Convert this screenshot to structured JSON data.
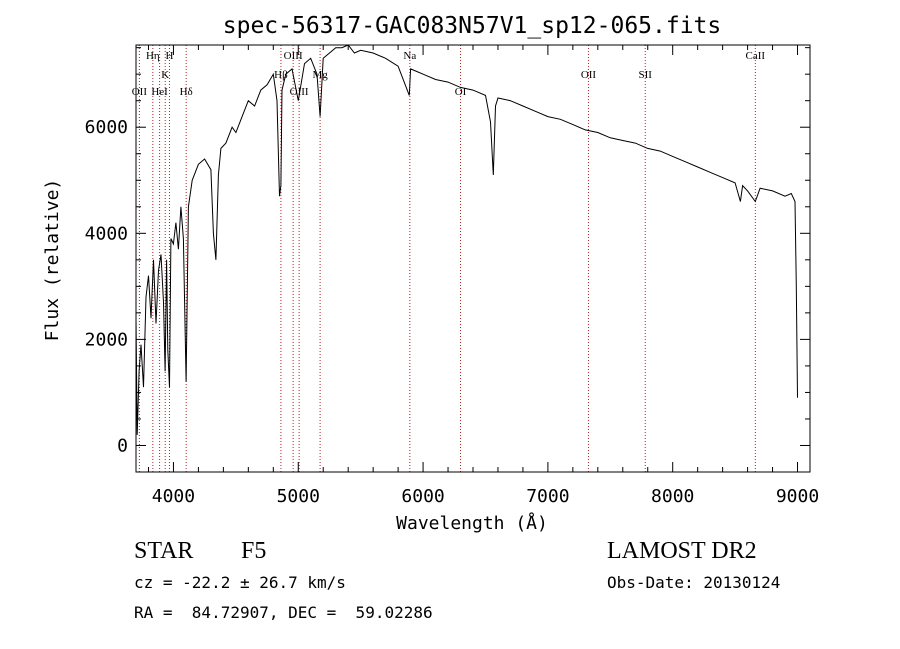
{
  "title": "spec-56317-GAC083N57V1_sp12-065.fits",
  "footer": {
    "class_label": "STAR",
    "subclass": "F5",
    "survey": "LAMOST DR2",
    "cz": "cz = -22.2 ± 26.7 km/s",
    "obs_date": "Obs-Date: 20130124",
    "coords": "RA =  84.72907, DEC =  59.02286"
  },
  "chart_data": {
    "type": "line",
    "title": "spec-56317-GAC083N57V1_sp12-065.fits",
    "xlabel": "Wavelength (Å)",
    "ylabel": "Flux (relative)",
    "xlim": [
      3700,
      9100
    ],
    "ylim": [
      -500,
      7550
    ],
    "xticks": [
      4000,
      5000,
      6000,
      7000,
      8000,
      9000
    ],
    "yticks": [
      0,
      2000,
      4000,
      6000
    ],
    "grid": false,
    "series": [
      {
        "x": [
          3700,
          3710,
          3725,
          3740,
          3760,
          3780,
          3800,
          3820,
          3840,
          3860,
          3880,
          3900,
          3920,
          3933,
          3945,
          3955,
          3968,
          3980,
          4000,
          4020,
          4040,
          4060,
          4080,
          4101,
          4120,
          4150,
          4200,
          4250,
          4300,
          4320,
          4340,
          4360,
          4380,
          4420,
          4470,
          4500,
          4550,
          4600,
          4650,
          4700,
          4750,
          4800,
          4830,
          4850,
          4861,
          4870,
          4900,
          4950,
          5000,
          5050,
          5100,
          5150,
          5175,
          5200,
          5250,
          5300,
          5350,
          5400,
          5450,
          5500,
          5600,
          5700,
          5800,
          5890,
          5900,
          5950,
          6000,
          6100,
          6200,
          6300,
          6400,
          6500,
          6540,
          6563,
          6580,
          6600,
          6700,
          6800,
          6900,
          7000,
          7100,
          7200,
          7300,
          7400,
          7500,
          7600,
          7700,
          7800,
          7900,
          8000,
          8100,
          8200,
          8300,
          8400,
          8500,
          8542,
          8560,
          8600,
          8662,
          8700,
          8800,
          8900,
          8950,
          8980,
          8990,
          9000
        ],
        "y": [
          2400,
          200,
          1400,
          1900,
          1100,
          2800,
          3200,
          2400,
          3500,
          2300,
          3300,
          3600,
          2700,
          1400,
          3500,
          1800,
          1100,
          3900,
          3800,
          4200,
          3700,
          4500,
          3900,
          1200,
          4500,
          5000,
          5300,
          5400,
          5200,
          4000,
          3500,
          5100,
          5600,
          5700,
          6000,
          5900,
          6200,
          6500,
          6400,
          6700,
          6800,
          7000,
          6500,
          4700,
          4900,
          6700,
          7000,
          7100,
          6500,
          7200,
          7300,
          7000,
          6200,
          7300,
          7400,
          7500,
          7500,
          7550,
          7400,
          7450,
          7400,
          7300,
          7150,
          6600,
          7100,
          7050,
          7000,
          6900,
          6850,
          6750,
          6700,
          6600,
          6100,
          5100,
          6400,
          6550,
          6500,
          6400,
          6300,
          6200,
          6150,
          6050,
          5950,
          5900,
          5800,
          5750,
          5700,
          5600,
          5550,
          5450,
          5350,
          5250,
          5150,
          5050,
          4950,
          4600,
          4900,
          4800,
          4600,
          4850,
          4800,
          4700,
          4750,
          4600,
          3000,
          900
        ]
      }
    ],
    "line_markers": [
      {
        "name": "OII",
        "x": 3727,
        "row": 2
      },
      {
        "name": "Hη",
        "x": 3835,
        "row": 0
      },
      {
        "name": "HeI",
        "x": 3889,
        "row": 2
      },
      {
        "name": "K",
        "x": 3934,
        "row": 1
      },
      {
        "name": "H",
        "x": 3968,
        "row": 0
      },
      {
        "name": "Hδ",
        "x": 4102,
        "row": 2
      },
      {
        "name": "Hβ",
        "x": 4861,
        "row": 1
      },
      {
        "name": "OIII",
        "x": 4959,
        "row": 0
      },
      {
        "name": "OIII",
        "x": 5007,
        "row": 2
      },
      {
        "name": "Mg",
        "x": 5175,
        "row": 1
      },
      {
        "name": "Na",
        "x": 5894,
        "row": 0
      },
      {
        "name": "OI",
        "x": 6300,
        "row": 2
      },
      {
        "name": "OII",
        "x": 7325,
        "row": 1
      },
      {
        "name": "SII",
        "x": 7780,
        "row": 1
      },
      {
        "name": "CaII",
        "x": 8662,
        "row": 0
      }
    ]
  }
}
